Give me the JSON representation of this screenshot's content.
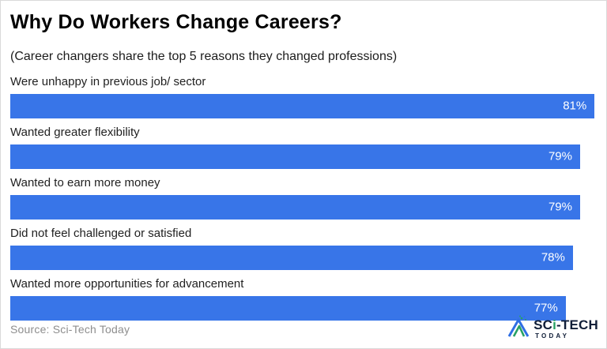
{
  "title": "Why Do Workers Change Careers?",
  "subtitle": "(Career changers share the top 5 reasons they changed professions)",
  "chart_data": {
    "type": "bar",
    "orientation": "horizontal",
    "categories": [
      "Were unhappy in previous job/ sector",
      "Wanted greater flexibility",
      "Wanted to earn more money",
      "Did not feel challenged or satisfied",
      "Wanted more opportunities for advancement"
    ],
    "values": [
      81,
      79,
      79,
      78,
      77
    ],
    "value_suffix": "%",
    "xlim": [
      0,
      81.3
    ],
    "bar_color": "#3875e8",
    "value_label_color": "#ffffff",
    "grid": false,
    "legend": false
  },
  "footer": {
    "source": "Source: Sci-Tech Today"
  },
  "logo": {
    "brand": "SCi-TECH",
    "tagline": "TODAY",
    "icon": "mountain-triangle-icon",
    "colors": {
      "blue": "#2f6fe4",
      "green": "#27a163",
      "text": "#101e38"
    }
  }
}
